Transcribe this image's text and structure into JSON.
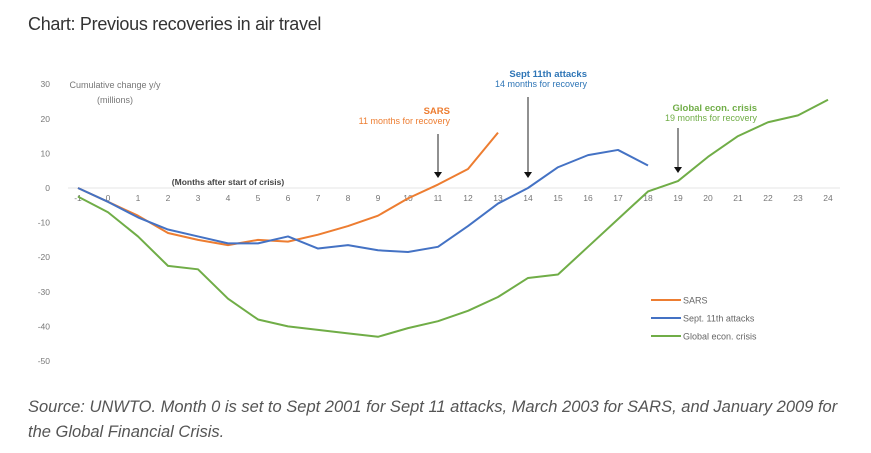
{
  "chart_data": {
    "type": "line",
    "title": "Chart: Previous recoveries in air travel",
    "ylabel_line1": "Cumulative change y/y",
    "ylabel_line2": "(millions)",
    "xlabel": "(Months after start of crisis)",
    "ylim": [
      -50,
      30
    ],
    "yticks": [
      30,
      20,
      10,
      0,
      -10,
      -20,
      -30,
      -40,
      -50
    ],
    "xticks": [
      -1,
      0,
      1,
      2,
      3,
      4,
      5,
      6,
      7,
      8,
      9,
      10,
      11,
      12,
      13,
      14,
      15,
      16,
      17,
      18,
      19,
      20,
      21,
      22,
      23,
      24
    ],
    "grid": false,
    "legend_position": "bottom-right",
    "series": [
      {
        "name": "SARS",
        "color": "#ed7d31",
        "x_start": -1,
        "values": [
          0,
          -4,
          -8,
          -13,
          -15,
          -16.5,
          -15,
          -15.5,
          -13.5,
          -11,
          -8,
          -3,
          1,
          5.5,
          16
        ]
      },
      {
        "name": "Sept. 11th attacks",
        "color": "#4472c4",
        "x_start": -1,
        "values": [
          0,
          -4,
          -8.5,
          -12,
          -14,
          -16,
          -16,
          -14,
          -17.5,
          -16.5,
          -18,
          -18.5,
          -17,
          -11,
          -4.5,
          0,
          6,
          9.5,
          11,
          6.5
        ]
      },
      {
        "name": "Global econ. crisis",
        "color": "#70ad47",
        "x_start": -1,
        "values": [
          -2.5,
          -7,
          -14,
          -22.5,
          -23.5,
          -32,
          -38,
          -40,
          -41,
          -42,
          -43,
          -40.5,
          -38.5,
          -35.5,
          -31.5,
          -26,
          -25,
          -17,
          -9,
          -1,
          2,
          9,
          15,
          19,
          21,
          25.5
        ]
      }
    ],
    "annotations": [
      {
        "title": "SARS",
        "subtitle": "11 months for recovery",
        "x": 11,
        "color": "#ed7d31"
      },
      {
        "title": "Sept 11th attacks",
        "subtitle": "14 months for recovery",
        "x": 14,
        "color": "#2e75b6"
      },
      {
        "title": "Global econ. crisis",
        "subtitle": "19 months for recovery",
        "x": 19,
        "color": "#70ad47"
      }
    ]
  },
  "caption": "Source: UNWTO. Month 0 is set to Sept 2001 for Sept 11 attacks, March 2003 for SARS, and January 2009 for the Global Financial Crisis."
}
